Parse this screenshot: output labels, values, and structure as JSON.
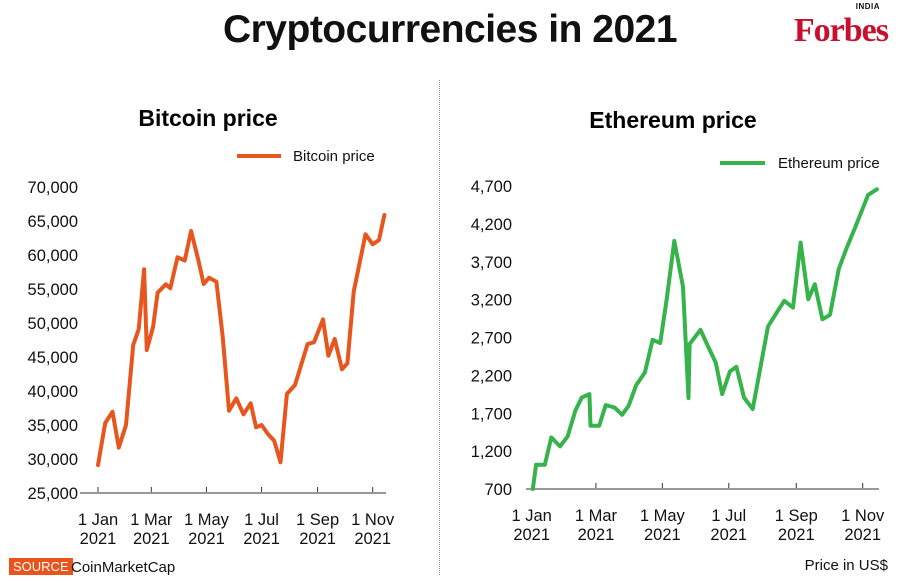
{
  "header": {
    "title": "Cryptocurrencies in 2021",
    "logo": "Forbes",
    "logo_sub": "INDIA"
  },
  "footer": {
    "source_label": "SOURCE",
    "source_name": "CoinMarketCap",
    "unit_note": "Price in US$"
  },
  "colors": {
    "bitcoin": "#e8561f",
    "ethereum": "#36b34a"
  },
  "chart_data": [
    {
      "type": "line",
      "title": "Bitcoin price",
      "legend": "Bitcoin price",
      "legend_position": "top-right",
      "xlabel": "",
      "ylabel": "",
      "x_unit": "day of 2021 (0 = 1 Jan)",
      "xticks": [
        {
          "day": 0,
          "line1": "1 Jan",
          "line2": "2021"
        },
        {
          "day": 59,
          "line1": "1 Mar",
          "line2": "2021"
        },
        {
          "day": 120,
          "line1": "1 May",
          "line2": "2021"
        },
        {
          "day": 181,
          "line1": "1 Jul",
          "line2": "2021"
        },
        {
          "day": 243,
          "line1": "1 Sep",
          "line2": "2021"
        },
        {
          "day": 304,
          "line1": "1 Nov",
          "line2": "2021"
        }
      ],
      "yticks": [
        "25,000",
        "30,000",
        "35,000",
        "40,000",
        "45,000",
        "50,000",
        "55,000",
        "60,000",
        "65,000",
        "70,000"
      ],
      "ylim": [
        25000,
        70000
      ],
      "x": [
        0,
        8,
        16,
        23,
        31,
        39,
        45,
        51,
        54,
        61,
        66,
        75,
        80,
        88,
        96,
        103,
        111,
        117,
        123,
        131,
        138,
        145,
        153,
        161,
        169,
        175,
        181,
        188,
        195,
        202,
        209,
        218,
        232,
        239,
        249,
        255,
        262,
        270,
        276,
        283,
        296,
        304,
        311,
        317
      ],
      "y": [
        29100,
        35300,
        36950,
        31660,
        35000,
        46760,
        49070,
        57900,
        46030,
        49460,
        54460,
        55690,
        55100,
        59660,
        59170,
        63530,
        59260,
        55740,
        56660,
        56070,
        47990,
        37100,
        38930,
        36570,
        38190,
        34660,
        35000,
        33680,
        32690,
        29510,
        39560,
        40880,
        46910,
        47160,
        50540,
        45190,
        47650,
        43190,
        44070,
        54600,
        63040,
        61570,
        62210,
        65880
      ]
    },
    {
      "type": "line",
      "title": "Ethereum price",
      "legend": "Ethereum price",
      "legend_position": "top-right",
      "xlabel": "",
      "ylabel": "",
      "x_unit": "day of 2021 (0 = 1 Jan)",
      "xticks": [
        {
          "day": 0,
          "line1": "1 Jan",
          "line2": "2021"
        },
        {
          "day": 59,
          "line1": "1 Mar",
          "line2": "2021"
        },
        {
          "day": 120,
          "line1": "1 May",
          "line2": "2021"
        },
        {
          "day": 181,
          "line1": "1 Jul",
          "line2": "2021"
        },
        {
          "day": 243,
          "line1": "1 Sep",
          "line2": "2021"
        },
        {
          "day": 304,
          "line1": "1 Nov",
          "line2": "2021"
        }
      ],
      "yticks": [
        "700",
        "1,200",
        "1,700",
        "2,200",
        "2,700",
        "3,200",
        "3,700",
        "4,200",
        "4,700"
      ],
      "ylim": [
        700,
        4700
      ],
      "x": [
        1,
        4,
        12,
        18,
        26,
        33,
        40,
        46,
        53,
        54,
        62,
        68,
        76,
        83,
        89,
        96,
        104,
        111,
        118,
        124,
        131,
        139,
        144,
        145,
        155,
        162,
        169,
        175,
        182,
        188,
        195,
        203,
        210,
        217,
        225,
        232,
        240,
        247,
        254,
        260,
        267,
        274,
        282,
        289,
        297,
        309,
        317
      ],
      "y": [
        700,
        1020,
        1020,
        1381,
        1262,
        1394,
        1733,
        1908,
        1953,
        1535,
        1535,
        1808,
        1776,
        1680,
        1799,
        2072,
        2238,
        2669,
        2626,
        3206,
        3975,
        3368,
        1900,
        2613,
        2801,
        2581,
        2370,
        1953,
        2251,
        2313,
        1908,
        1755,
        2304,
        2845,
        3029,
        3184,
        3095,
        3953,
        3206,
        3404,
        2942,
        2999,
        3602,
        3874,
        4151,
        4582,
        4657
      ]
    }
  ]
}
